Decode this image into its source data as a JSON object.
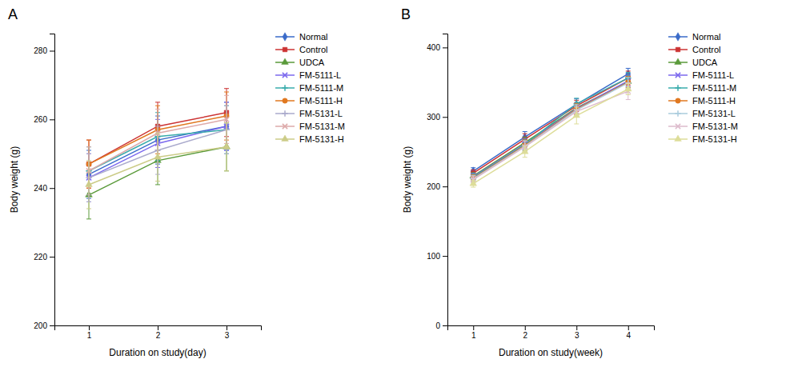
{
  "chart_data": [
    {
      "type": "line",
      "title": "A",
      "x_label": "Duration on study(day)",
      "y_label": "Body weight (g)",
      "x": [
        1,
        2,
        3
      ],
      "xlim": [
        0.5,
        3.5
      ],
      "ylim": [
        200,
        285
      ],
      "xticks": [
        1,
        2,
        3
      ],
      "yticks": [
        200,
        220,
        240,
        260,
        280
      ],
      "grid": false,
      "legend": "right",
      "series": [
        {
          "name": "Normal",
          "color": "#3A6BC9",
          "marker": "diamond",
          "values": [
            244,
            254,
            258
          ],
          "errors": [
            7,
            7,
            7
          ]
        },
        {
          "name": "Control",
          "color": "#CC3333",
          "marker": "square",
          "values": [
            247,
            258,
            262
          ],
          "errors": [
            7,
            7,
            7
          ]
        },
        {
          "name": "UDCA",
          "color": "#5A9A3A",
          "marker": "triangle",
          "values": [
            238,
            248,
            252
          ],
          "errors": [
            7,
            7,
            7
          ]
        },
        {
          "name": "FM-5111-L",
          "color": "#7B68EE",
          "marker": "x",
          "values": [
            243,
            253,
            258
          ],
          "errors": [
            7,
            7,
            7
          ]
        },
        {
          "name": "FM-5111-M",
          "color": "#3AACAC",
          "marker": "plus",
          "values": [
            245,
            255,
            257
          ],
          "errors": [
            7,
            7,
            7
          ]
        },
        {
          "name": "FM-5111-H",
          "color": "#E07820",
          "marker": "circle",
          "values": [
            247,
            257,
            261
          ],
          "errors": [
            7,
            7,
            7
          ]
        },
        {
          "name": "FM-5131-L",
          "color": "#AAAACC",
          "marker": "plus",
          "values": [
            243,
            251,
            257
          ],
          "errors": [
            7,
            7,
            7
          ]
        },
        {
          "name": "FM-5131-M",
          "color": "#DDAAAA",
          "marker": "x",
          "values": [
            245,
            256,
            260
          ],
          "errors": [
            7,
            7,
            7
          ]
        },
        {
          "name": "FM-5131-H",
          "color": "#CCCC88",
          "marker": "triangle",
          "values": [
            241,
            249,
            252
          ],
          "errors": [
            7,
            7,
            7
          ]
        }
      ]
    },
    {
      "type": "line",
      "title": "B",
      "x_label": "Duration on study(week)",
      "y_label": "Body weight (g)",
      "x": [
        1,
        2,
        3,
        4
      ],
      "xlim": [
        0.5,
        4.5
      ],
      "ylim": [
        0,
        420
      ],
      "xticks": [
        1,
        2,
        3,
        4
      ],
      "yticks": [
        0,
        100,
        200,
        300,
        400
      ],
      "grid": false,
      "legend": "right",
      "series": [
        {
          "name": "Normal",
          "color": "#3A6BC9",
          "marker": "diamond",
          "values": [
            222,
            271,
            318,
            362
          ],
          "errors": [
            5,
            8,
            8,
            8
          ]
        },
        {
          "name": "Control",
          "color": "#CC3333",
          "marker": "square",
          "values": [
            219,
            268,
            316,
            356
          ],
          "errors": [
            5,
            8,
            8,
            10
          ]
        },
        {
          "name": "UDCA",
          "color": "#5A9A3A",
          "marker": "triangle",
          "values": [
            215,
            263,
            313,
            351
          ],
          "errors": [
            5,
            8,
            8,
            8
          ]
        },
        {
          "name": "FM-5111-L",
          "color": "#7B68EE",
          "marker": "x",
          "values": [
            214,
            261,
            312,
            352
          ],
          "errors": [
            5,
            8,
            8,
            8
          ]
        },
        {
          "name": "FM-5111-M",
          "color": "#3AACAC",
          "marker": "plus",
          "values": [
            213,
            260,
            319,
            356
          ],
          "errors": [
            5,
            8,
            8,
            8
          ]
        },
        {
          "name": "FM-5111-H",
          "color": "#E07820",
          "marker": "circle",
          "values": [
            212,
            259,
            311,
            350
          ],
          "errors": [
            5,
            8,
            8,
            8
          ]
        },
        {
          "name": "FM-5131-L",
          "color": "#AACCDD",
          "marker": "plus",
          "values": [
            211,
            258,
            310,
            349
          ],
          "errors": [
            5,
            8,
            8,
            8
          ]
        },
        {
          "name": "FM-5131-M",
          "color": "#DDBBCC",
          "marker": "x",
          "values": [
            210,
            257,
            308,
            337
          ],
          "errors": [
            5,
            8,
            8,
            12
          ]
        },
        {
          "name": "FM-5131-H",
          "color": "#DDDD99",
          "marker": "triangle",
          "values": [
            204,
            250,
            302,
            340
          ],
          "errors": [
            5,
            8,
            12,
            8
          ]
        }
      ]
    }
  ]
}
